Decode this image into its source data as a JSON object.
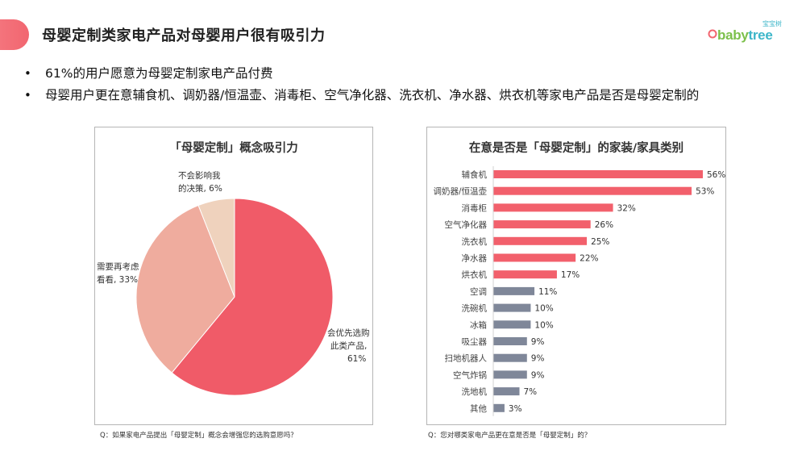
{
  "header": {
    "title": "母婴定制类家电产品对母婴用户很有吸引力",
    "logo_small": "宝宝树",
    "logo_text_a": "baby",
    "logo_text_b": "tree"
  },
  "bullets": [
    "61%的用户愿意为母婴定制家电产品付费",
    "母婴用户更在意辅食机、调奶器/恒温壶、消毒柜、空气净化器、洗衣机、净水器、烘衣机等家电产品是否是母婴定制的"
  ],
  "notes": {
    "left": "Q：如果家电产品提出「母婴定制」概念会增强您的选购意愿吗？",
    "right": "Q：您对哪类家电产品更在意是否是「母婴定制」的？"
  },
  "colors": {
    "accent": "#f26670",
    "bar_highlight": "#f2606c",
    "bar_normal": "#7f8799",
    "pie": [
      "#f05b68",
      "#efac9e",
      "#efd2bd"
    ]
  },
  "chart_data": [
    {
      "type": "pie",
      "title": "「母婴定制」概念吸引力",
      "slices": [
        {
          "label_lines": [
            "会优先选购",
            "此类产品,",
            "61%"
          ],
          "value": 61
        },
        {
          "label_lines": [
            "需要再考虑",
            "看看, 33%"
          ],
          "value": 33
        },
        {
          "label_lines": [
            "不会影响我",
            "的决策, 6%"
          ],
          "value": 6
        }
      ]
    },
    {
      "type": "bar",
      "orientation": "horizontal",
      "title": "在意是否是「母婴定制」的家装/家具类别",
      "categories": [
        "辅食机",
        "调奶器/恒温壶",
        "消毒柜",
        "空气净化器",
        "洗衣机",
        "净水器",
        "烘衣机",
        "空调",
        "洗碗机",
        "冰箱",
        "吸尘器",
        "扫地机器人",
        "空气炸锅",
        "洗地机",
        "其他"
      ],
      "values": [
        56,
        53,
        32,
        26,
        25,
        22,
        17,
        11,
        10,
        10,
        9,
        9,
        9,
        7,
        3
      ],
      "value_labels": [
        "56%",
        "53%",
        "32%",
        "26%",
        "25%",
        "22%",
        "17%",
        "11%",
        "10%",
        "10%",
        "9%",
        "9%",
        "9%",
        "7%",
        "3%"
      ],
      "highlight_count": 7,
      "xlim": [
        0,
        56
      ]
    }
  ]
}
